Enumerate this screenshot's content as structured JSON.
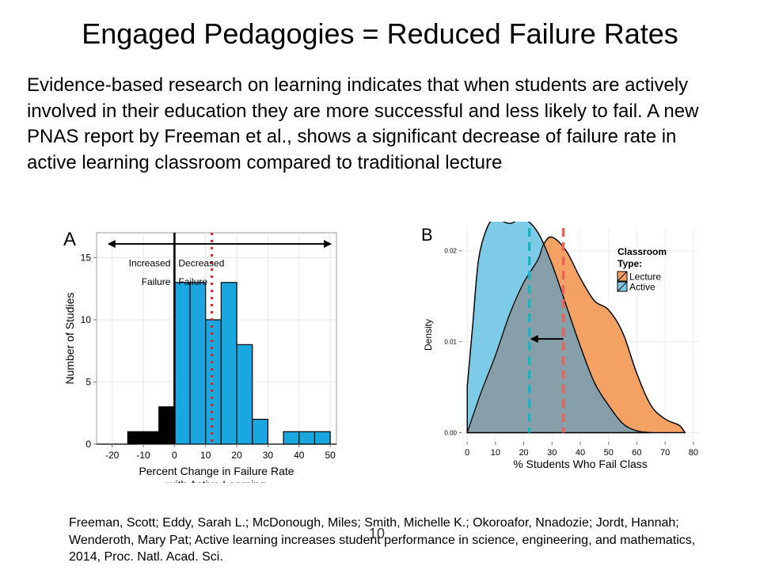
{
  "slide": {
    "title": "Engaged Pedagogies = Reduced Failure Rates",
    "paragraph": "Evidence-based research on learning indicates that when students are actively involved in their education they are more successful and less likely to fail. A new PNAS report by Freeman et al., shows a significant decrease of failure rate in active learning classroom compared to traditional lecture",
    "citation": "Freeman, Scott; Eddy, Sarah L.; McDonough, Miles; Smith, Michelle K.; Okoroafor, Nnadozie; Jordt, Hannah; Wenderoth, Mary Pat; Active learning increases student performance in science, engineering, and mathematics, 2014, Proc. Natl. Acad. Sci.",
    "page_number": "10"
  },
  "chart_data": [
    {
      "type": "bar",
      "panel_label": "A",
      "xlabel": "Percent Change in Failure Rate with Active Learning",
      "ylabel": "Number of Studies",
      "xlim": [
        -25,
        52
      ],
      "ylim": [
        0,
        17
      ],
      "xticks": [
        -20,
        -10,
        0,
        10,
        20,
        30,
        40,
        50
      ],
      "yticks": [
        0,
        5,
        10,
        15
      ],
      "bin_width": 5,
      "bins": [
        {
          "x0": -15,
          "x1": -10,
          "value": 1,
          "group": "increased"
        },
        {
          "x0": -10,
          "x1": -5,
          "value": 1,
          "group": "increased"
        },
        {
          "x0": -5,
          "x1": 0,
          "value": 3,
          "group": "increased"
        },
        {
          "x0": 0,
          "x1": 5,
          "value": 13,
          "group": "decreased"
        },
        {
          "x0": 5,
          "x1": 10,
          "value": 13,
          "group": "decreased"
        },
        {
          "x0": 10,
          "x1": 15,
          "value": 10,
          "group": "decreased"
        },
        {
          "x0": 15,
          "x1": 20,
          "value": 13,
          "group": "decreased"
        },
        {
          "x0": 20,
          "x1": 25,
          "value": 8,
          "group": "decreased"
        },
        {
          "x0": 25,
          "x1": 30,
          "value": 2,
          "group": "decreased"
        },
        {
          "x0": 35,
          "x1": 40,
          "value": 1,
          "group": "decreased"
        },
        {
          "x0": 40,
          "x1": 45,
          "value": 1,
          "group": "decreased"
        },
        {
          "x0": 45,
          "x1": 50,
          "value": 1,
          "group": "decreased"
        }
      ],
      "zero_line": 0,
      "mean_line": 12,
      "annotation_left": [
        "Increased",
        "Failure"
      ],
      "annotation_right": [
        "Decreased",
        "Failure"
      ],
      "colors": {
        "increased": "#000000",
        "decreased": "#1aa7e0",
        "mean_line": "#e0202b"
      }
    },
    {
      "type": "area",
      "panel_label": "B",
      "xlabel": "% Students Who Fail Class",
      "ylabel": "Density",
      "xlim": [
        -2,
        82
      ],
      "ylim": [
        -0.001,
        0.0225
      ],
      "xticks": [
        0,
        10,
        20,
        30,
        40,
        50,
        60,
        70,
        80
      ],
      "yticks": [
        0.0,
        0.01,
        0.02
      ],
      "ytick_labels": [
        "0.00",
        "0.01",
        "0.02"
      ],
      "legend_title": "Classroom Type:",
      "legend_position": "top-right",
      "series": [
        {
          "name": "Lecture",
          "color": "#f4a263",
          "mean": 34,
          "x": [
            0,
            5,
            10,
            15,
            20,
            25,
            27,
            30,
            35,
            40,
            45,
            50,
            55,
            60,
            65,
            70,
            75,
            77
          ],
          "y": [
            0.0,
            0.0045,
            0.0085,
            0.013,
            0.0165,
            0.019,
            0.0207,
            0.0215,
            0.02,
            0.017,
            0.0145,
            0.0135,
            0.011,
            0.0065,
            0.003,
            0.0015,
            0.0008,
            0.0
          ]
        },
        {
          "name": "Active",
          "color": "#7ecbe8",
          "mean": 22,
          "x": [
            0,
            1,
            2,
            4,
            7,
            10,
            15,
            20,
            25,
            30,
            35,
            40,
            45,
            50,
            55,
            60,
            65
          ],
          "y": [
            0.005,
            0.0085,
            0.012,
            0.019,
            0.0225,
            0.0235,
            0.023,
            0.0235,
            0.022,
            0.0185,
            0.014,
            0.0095,
            0.0055,
            0.003,
            0.001,
            0.0002,
            0.0
          ]
        }
      ],
      "overlap_color": "#879fa8",
      "arrow": {
        "from": 34,
        "to": 22,
        "y": 0.0103
      }
    }
  ]
}
